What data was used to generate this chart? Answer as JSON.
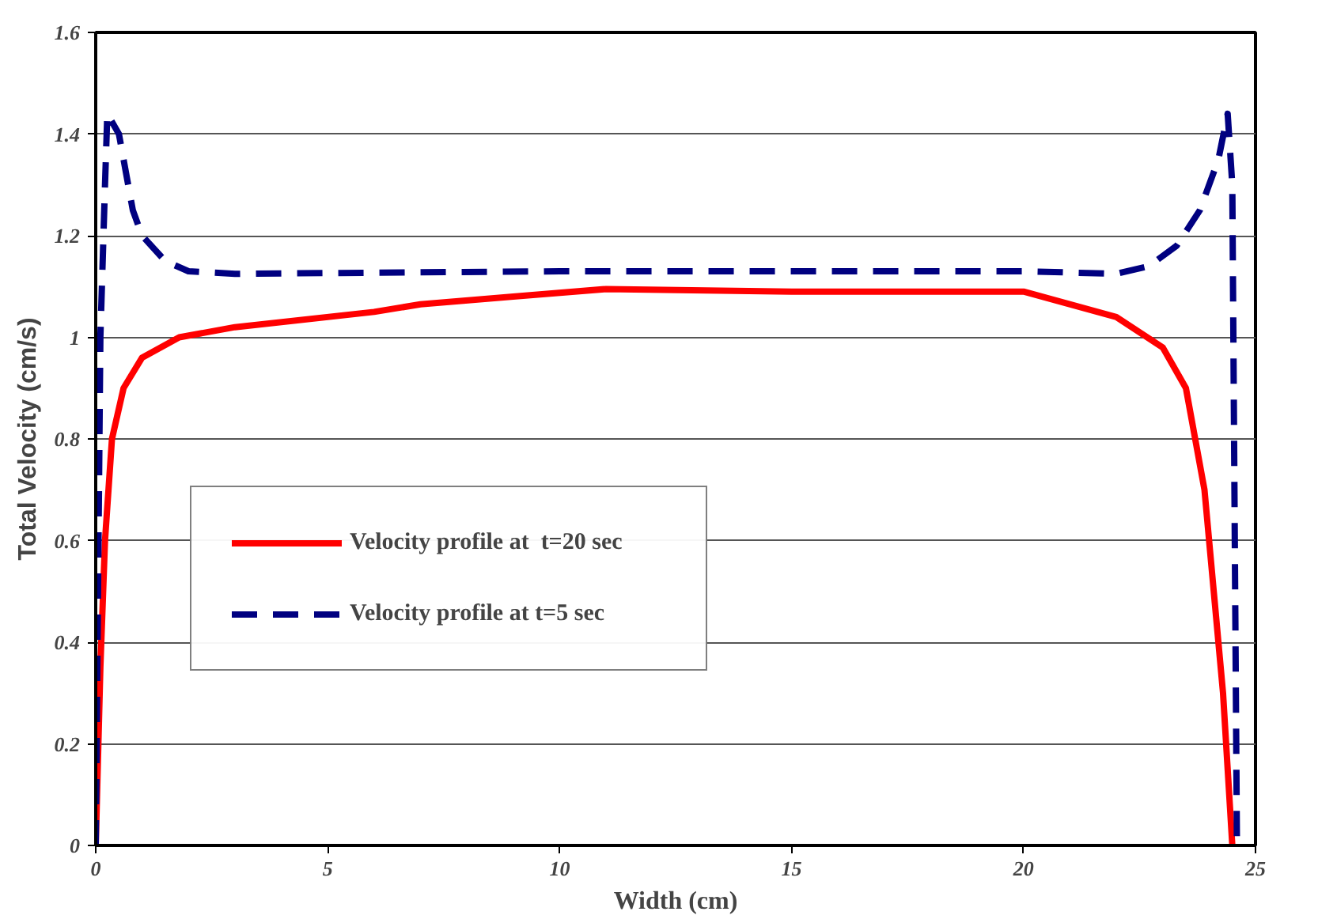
{
  "chart_data": {
    "type": "line",
    "xlabel": "Width (cm)",
    "ylabel": "Total Velocity (cm/s)",
    "xlim": [
      0,
      25
    ],
    "xticks": [
      0,
      5,
      10,
      15,
      20,
      25
    ],
    "ylim": [
      0,
      1.6
    ],
    "yticks": [
      0,
      0.2,
      0.4,
      0.6,
      0.8,
      1,
      1.2,
      1.4,
      1.6
    ],
    "grid": "y",
    "legend": "left",
    "marker": "none",
    "series": [
      {
        "name": "Velocity profile at  t=20 sec",
        "color": "#ff0000",
        "line_style": "solid",
        "x": [
          0,
          0.1,
          0.2,
          0.35,
          0.6,
          1.0,
          1.8,
          3,
          6,
          7,
          9,
          11,
          15,
          19,
          20,
          22,
          23,
          23.5,
          23.9,
          24.1,
          24.3,
          24.5
        ],
        "values": [
          0,
          0.35,
          0.6,
          0.8,
          0.9,
          0.96,
          1.0,
          1.02,
          1.05,
          1.065,
          1.08,
          1.095,
          1.09,
          1.09,
          1.09,
          1.04,
          0.98,
          0.9,
          0.7,
          0.5,
          0.3,
          0.0
        ]
      },
      {
        "name": "Velocity profile at t=5 sec",
        "color": "#000080",
        "line_style": "dashed",
        "x": [
          0,
          0.05,
          0.1,
          0.2,
          0.25,
          0.5,
          0.8,
          1,
          1.5,
          2,
          3,
          10,
          20,
          22,
          22.7,
          23.3,
          23.8,
          24.2,
          24.4,
          24.5,
          24.6
        ],
        "values": [
          0,
          0.5,
          1.0,
          1.3,
          1.44,
          1.4,
          1.25,
          1.2,
          1.15,
          1.13,
          1.125,
          1.13,
          1.13,
          1.125,
          1.14,
          1.18,
          1.25,
          1.35,
          1.44,
          1.3,
          0.0
        ]
      }
    ]
  }
}
